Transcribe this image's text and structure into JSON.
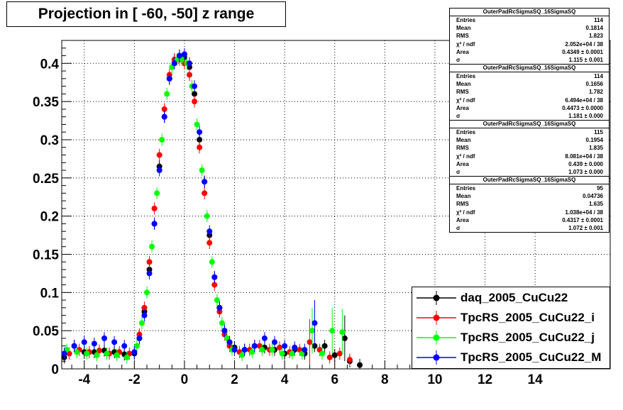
{
  "title": "Projection in [ -60, -50] z range",
  "stats_boxes": [
    {
      "name": "OuterPadRcSigmaSQ_16SigmaSQ",
      "rows": [
        [
          "Entries",
          "114"
        ],
        [
          "Mean",
          "0.1814"
        ],
        [
          "RMS",
          "1.823"
        ],
        [
          "χ² / ndf",
          "2.052e+04 / 38"
        ],
        [
          "Area",
          "0.4349 ± 0.0001"
        ],
        [
          "σ",
          "1.115 ± 0.001"
        ]
      ]
    },
    {
      "name": "OuterPadRcSigmaSQ_16SigmaSQ",
      "rows": [
        [
          "Entries",
          "114"
        ],
        [
          "Mean",
          "0.1656"
        ],
        [
          "RMS",
          "1.782"
        ],
        [
          "χ² / ndf",
          "6.494e+04 / 38"
        ],
        [
          "Area",
          "0.4473 ± 0.0000"
        ],
        [
          "σ",
          "1.181 ± 0.000"
        ]
      ]
    },
    {
      "name": "OuterPadRcSigmaSQ_16SigmaSQ",
      "rows": [
        [
          "Entries",
          "115"
        ],
        [
          "Mean",
          "0.1954"
        ],
        [
          "RMS",
          "1.835"
        ],
        [
          "χ² / ndf",
          "8.081e+04 / 38"
        ],
        [
          "Area",
          "0.439 ± 0.000"
        ],
        [
          "σ",
          "1.073 ± 0.000"
        ]
      ]
    },
    {
      "name": "OuterPadRcSigmaSQ_16SigmaSQ",
      "rows": [
        [
          "Entries",
          "95"
        ],
        [
          "Mean",
          "0.04736"
        ],
        [
          "RMS",
          "1.635"
        ],
        [
          "χ² / ndf",
          "1.038e+04 / 38"
        ],
        [
          "Area",
          "0.4317 ± 0.0001"
        ],
        [
          "σ",
          "1.072 ± 0.001"
        ]
      ]
    }
  ],
  "legend": [
    {
      "label": "daq_2005_CuCu22",
      "color": "#000000"
    },
    {
      "label": "TpcRS_2005_CuCu22_i",
      "color": "#ff0000"
    },
    {
      "label": "TpcRS_2005_CuCu22_j",
      "color": "#00ff00"
    },
    {
      "label": "TpcRS_2005_CuCu22_M",
      "color": "#0000ff"
    }
  ],
  "chart_data": {
    "type": "scatter",
    "title": "Projection in [ -60, -50] z range",
    "xlabel": "",
    "ylabel": "",
    "xlim": [
      -4.9,
      17.0
    ],
    "ylim": [
      0,
      0.43
    ],
    "grid": true,
    "legend_position": "bottom-right",
    "x_ticks": [
      "-4",
      "-2",
      "0",
      "2",
      "4",
      "6",
      "8",
      "10",
      "12",
      "14"
    ],
    "y_ticks": [
      "0",
      "0.05",
      "0.1",
      "0.15",
      "0.2",
      "0.25",
      "0.3",
      "0.35",
      "0.4"
    ],
    "series": [
      {
        "name": "daq_2005_CuCu22",
        "color": "#000000",
        "x": [
          -4.8,
          -4.4,
          -4.0,
          -3.6,
          -3.2,
          -2.8,
          -2.4,
          -2.0,
          -1.8,
          -1.6,
          -1.4,
          -1.2,
          -1.0,
          -0.8,
          -0.6,
          -0.4,
          -0.2,
          0.0,
          0.2,
          0.4,
          0.6,
          0.8,
          1.0,
          1.2,
          1.4,
          1.6,
          1.8,
          2.0,
          2.4,
          2.8,
          3.2,
          3.6,
          4.0,
          4.4,
          4.8,
          5.2,
          5.6,
          6.0,
          6.4,
          6.6,
          7.0
        ],
        "y": [
          0.015,
          0.03,
          0.022,
          0.022,
          0.024,
          0.022,
          0.019,
          0.02,
          0.04,
          0.075,
          0.13,
          0.19,
          0.265,
          0.33,
          0.38,
          0.405,
          0.41,
          0.408,
          0.395,
          0.36,
          0.3,
          0.245,
          0.175,
          0.12,
          0.08,
          0.05,
          0.035,
          0.028,
          0.025,
          0.03,
          0.028,
          0.025,
          0.02,
          0.025,
          0.02,
          0.03,
          0.03,
          0.018,
          0.04,
          0.01,
          0.005
        ]
      },
      {
        "name": "TpcRS_2005_CuCu22_i",
        "color": "#ff0000",
        "x": [
          -4.6,
          -4.2,
          -3.8,
          -3.4,
          -3.0,
          -2.6,
          -2.2,
          -1.8,
          -1.6,
          -1.4,
          -1.2,
          -1.0,
          -0.8,
          -0.6,
          -0.4,
          -0.2,
          0.0,
          0.2,
          0.4,
          0.6,
          0.8,
          1.0,
          1.2,
          1.4,
          1.6,
          1.8,
          2.2,
          2.6,
          3.0,
          3.4,
          3.8,
          4.2,
          4.6,
          5.0,
          5.4,
          5.8,
          6.2,
          6.6
        ],
        "y": [
          0.02,
          0.025,
          0.022,
          0.024,
          0.02,
          0.022,
          0.02,
          0.045,
          0.08,
          0.14,
          0.21,
          0.28,
          0.34,
          0.385,
          0.405,
          0.405,
          0.4,
          0.385,
          0.35,
          0.29,
          0.23,
          0.165,
          0.11,
          0.075,
          0.045,
          0.03,
          0.022,
          0.025,
          0.03,
          0.025,
          0.028,
          0.022,
          0.025,
          0.035,
          0.025,
          0.015,
          0.02,
          0.012
        ]
      },
      {
        "name": "TpcRS_2005_CuCu22_j",
        "color": "#00ff00",
        "x": [
          -4.7,
          -4.3,
          -3.9,
          -3.5,
          -3.1,
          -2.7,
          -2.3,
          -1.9,
          -1.7,
          -1.5,
          -1.3,
          -1.1,
          -0.9,
          -0.7,
          -0.5,
          -0.3,
          -0.1,
          0.1,
          0.3,
          0.5,
          0.7,
          0.9,
          1.1,
          1.3,
          1.5,
          1.7,
          1.9,
          2.3,
          2.7,
          3.1,
          3.5,
          3.9,
          4.3,
          4.7,
          5.1,
          5.5,
          5.9,
          6.3
        ],
        "y": [
          0.025,
          0.022,
          0.02,
          0.018,
          0.02,
          0.018,
          0.015,
          0.03,
          0.06,
          0.1,
          0.16,
          0.23,
          0.3,
          0.36,
          0.395,
          0.405,
          0.405,
          0.4,
          0.37,
          0.32,
          0.26,
          0.2,
          0.14,
          0.09,
          0.06,
          0.04,
          0.025,
          0.018,
          0.022,
          0.025,
          0.025,
          0.02,
          0.02,
          0.02,
          0.05,
          0.02,
          0.05,
          0.048
        ]
      },
      {
        "name": "TpcRS_2005_CuCu22_M",
        "color": "#0000ff",
        "x": [
          -4.8,
          -4.4,
          -4.0,
          -3.6,
          -3.2,
          -2.8,
          -2.4,
          -2.0,
          -1.8,
          -1.6,
          -1.4,
          -1.2,
          -1.0,
          -0.8,
          -0.6,
          -0.4,
          -0.2,
          0.0,
          0.2,
          0.4,
          0.6,
          0.8,
          1.0,
          1.2,
          1.4,
          1.6,
          1.8,
          2.0,
          2.4,
          2.8,
          3.2,
          3.6,
          4.0,
          4.4,
          4.8,
          5.2
        ],
        "y": [
          0.02,
          0.03,
          0.035,
          0.033,
          0.04,
          0.035,
          0.03,
          0.022,
          0.04,
          0.07,
          0.125,
          0.19,
          0.26,
          0.33,
          0.38,
          0.4,
          0.41,
          0.412,
          0.4,
          0.37,
          0.31,
          0.245,
          0.18,
          0.12,
          0.08,
          0.05,
          0.035,
          0.025,
          0.025,
          0.03,
          0.04,
          0.035,
          0.03,
          0.028,
          0.025,
          0.06
        ]
      }
    ]
  }
}
